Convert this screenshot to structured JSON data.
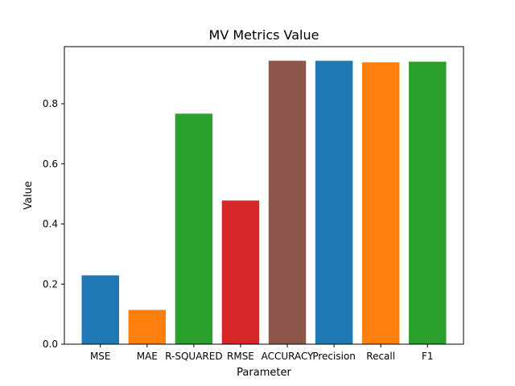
{
  "chart_data": {
    "type": "bar",
    "title": "MV Metrics Value",
    "xlabel": "Parameter",
    "ylabel": "Value",
    "categories": [
      "MSE",
      "MAE",
      "R-SQUARED",
      "RMSE",
      "ACCURACY",
      "Precision",
      "Recall",
      "F1"
    ],
    "values": [
      0.229,
      0.114,
      0.767,
      0.478,
      0.943,
      0.943,
      0.938,
      0.94
    ],
    "colors": [
      "#1f77b4",
      "#ff7f0e",
      "#2ca02c",
      "#d62728",
      "#8c564b",
      "#1f77b4",
      "#ff7f0e",
      "#2ca02c"
    ],
    "ylim": [
      0,
      0.99
    ],
    "yticks": [
      0.0,
      0.2,
      0.4,
      0.6,
      0.8
    ],
    "ytick_labels": [
      "0.0",
      "0.2",
      "0.4",
      "0.6",
      "0.8"
    ],
    "grid": false,
    "legend": "none"
  }
}
